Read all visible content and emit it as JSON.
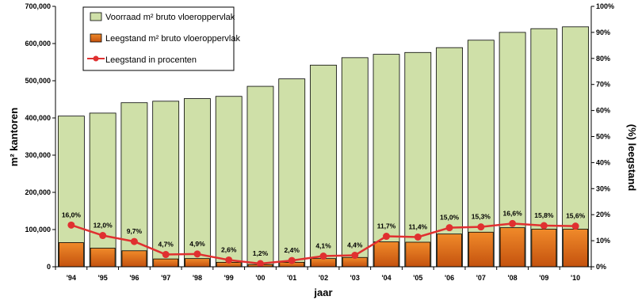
{
  "chart_data": {
    "type": "bar",
    "categories": [
      "'94",
      "'95",
      "'96",
      "'97",
      "'98",
      "'99",
      "'00",
      "'01",
      "'02",
      "'03",
      "'04",
      "'05",
      "'06",
      "'07",
      "'08",
      "'09",
      "'10"
    ],
    "series": [
      {
        "name": "Voorraad m² bruto vloeroppervlak",
        "type": "bar",
        "axis": "left",
        "color": "#cfe0a8",
        "values": [
          405000,
          413000,
          441000,
          445000,
          452000,
          458000,
          485000,
          505000,
          542000,
          562000,
          571000,
          576000,
          589000,
          609000,
          630000,
          640000,
          645000
        ]
      },
      {
        "name": "Leegstand m² bruto vloeroppervlak",
        "type": "bar",
        "axis": "left",
        "color": "#e8731a",
        "values": [
          65000,
          50000,
          43000,
          21000,
          22000,
          12000,
          6000,
          12000,
          22000,
          25000,
          67000,
          66000,
          88000,
          93000,
          105000,
          101000,
          101000
        ]
      },
      {
        "name": "Leegstand in procenten",
        "type": "line",
        "axis": "right",
        "color": "#e03030",
        "values": [
          16.0,
          12.0,
          9.7,
          4.7,
          4.9,
          2.6,
          1.2,
          2.4,
          4.1,
          4.4,
          11.7,
          11.4,
          15.0,
          15.3,
          16.6,
          15.8,
          15.6
        ]
      }
    ],
    "data_labels": [
      "16,0%",
      "12,0%",
      "9,7%",
      "4,7%",
      "4,9%",
      "2,6%",
      "1,2%",
      "2,4%",
      "4,1%",
      "4,4%",
      "11,7%",
      "11,4%",
      "15,0%",
      "15,3%",
      "16,6%",
      "15,8%",
      "15,6%"
    ],
    "xlabel": "jaar",
    "ylabel": "m² kantoren",
    "y2label": "(%) leegstand",
    "ylim": [
      0,
      700000
    ],
    "y2lim": [
      0,
      100
    ],
    "yticks": [
      "0",
      "100,000",
      "200,000",
      "300,000",
      "400,000",
      "500,000",
      "600,000",
      "700,000"
    ],
    "y2ticks": [
      "0%",
      "10%",
      "20%",
      "30%",
      "40%",
      "50%",
      "60%",
      "70%",
      "80%",
      "90%",
      "100%"
    ],
    "grid": false,
    "legend_position": "top-left"
  }
}
